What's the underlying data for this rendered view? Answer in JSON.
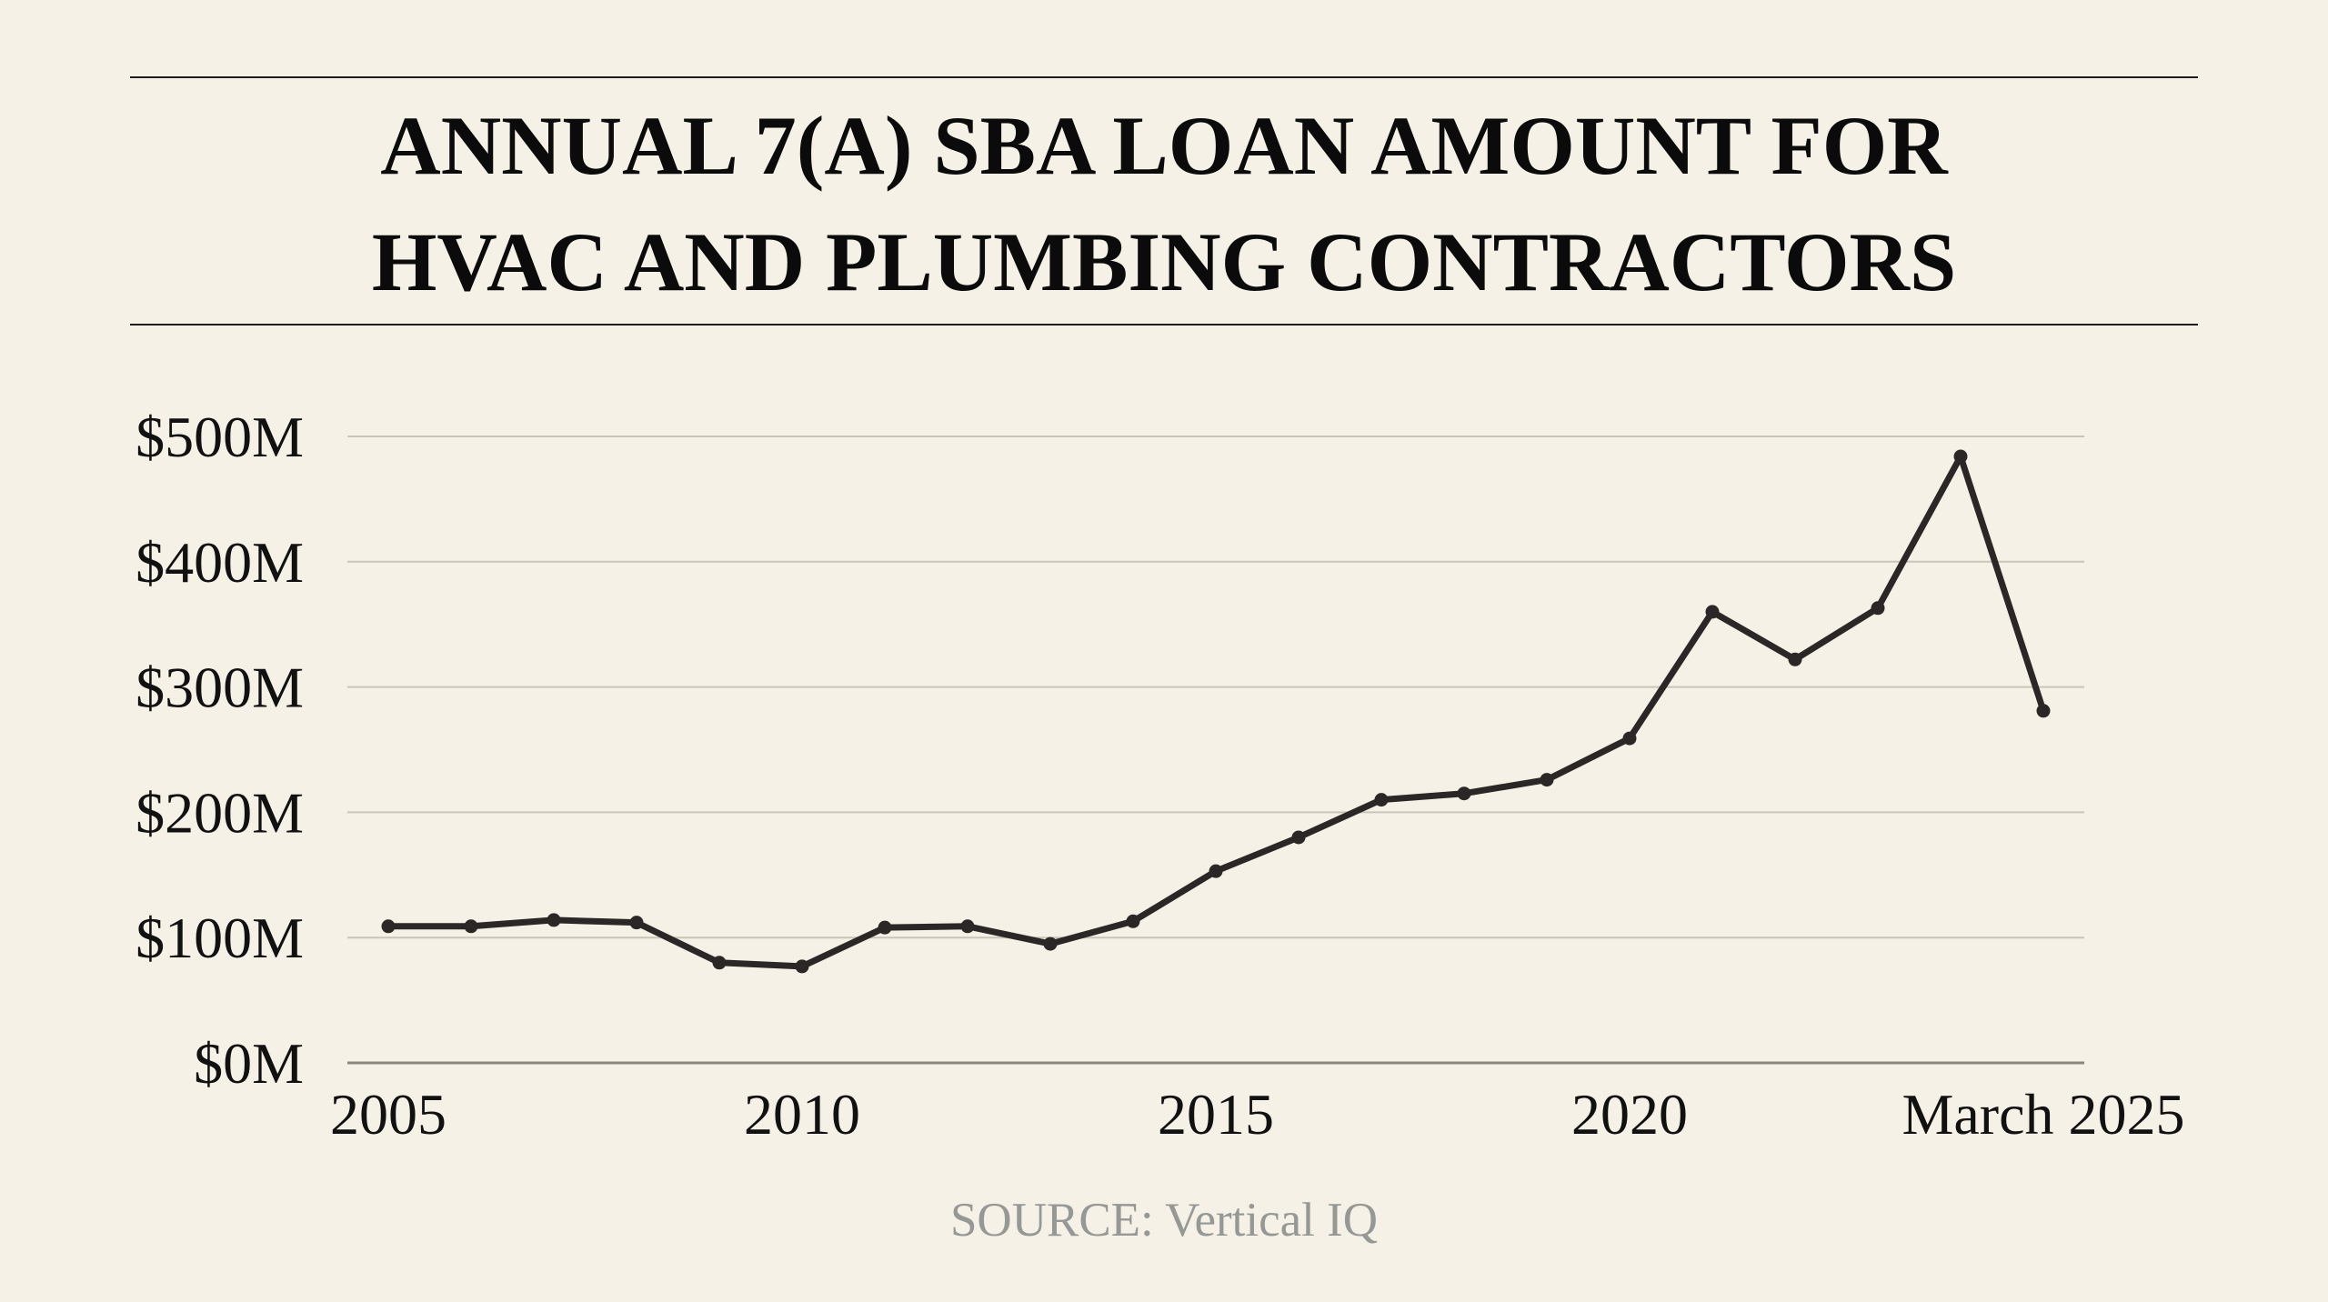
{
  "header": {
    "title_line1": "ANNUAL 7(A) SBA LOAN AMOUNT FOR",
    "title_line2": "HVAC AND PLUMBING CONTRACTORS"
  },
  "footer": {
    "source": "SOURCE: Vertical IQ"
  },
  "colors": {
    "background": "#f6f1e6",
    "line": "#2a2726",
    "gridline": "#c9c5b8",
    "axis": "#8a8780",
    "rule": "#1f1d1b",
    "source_text": "#959895"
  },
  "chart_data": {
    "type": "line",
    "title": "ANNUAL 7(A) SBA LOAN AMOUNT FOR HVAC AND PLUMBING CONTRACTORS",
    "xlabel": "",
    "ylabel": "",
    "x": [
      "2005",
      "2006",
      "2007",
      "2008",
      "2009",
      "2010",
      "2011",
      "2012",
      "2013",
      "2014",
      "2015",
      "2016",
      "2017",
      "2018",
      "2019",
      "2020",
      "2021",
      "2022",
      "2023",
      "2024",
      "March 2025"
    ],
    "series": [
      {
        "name": "7(a) SBA loan amount ($M)",
        "values": [
          109,
          109,
          114,
          112,
          80,
          77,
          108,
          109,
          95,
          113,
          153,
          180,
          210,
          215,
          226,
          259,
          360,
          322,
          363,
          484,
          281
        ]
      }
    ],
    "x_tick_labels": [
      "2005",
      "2010",
      "2015",
      "2020",
      "March 2025"
    ],
    "x_tick_indices": [
      0,
      5,
      10,
      15,
      20
    ],
    "y_ticks": [
      0,
      100,
      200,
      300,
      400,
      500
    ],
    "y_tick_labels": [
      "$0M",
      "$100M",
      "$200M",
      "$300M",
      "$400M",
      "$500M"
    ],
    "ylim": [
      0,
      500
    ],
    "grid": true,
    "legend": "none",
    "markers": true,
    "source": "SOURCE: Vertical IQ"
  }
}
